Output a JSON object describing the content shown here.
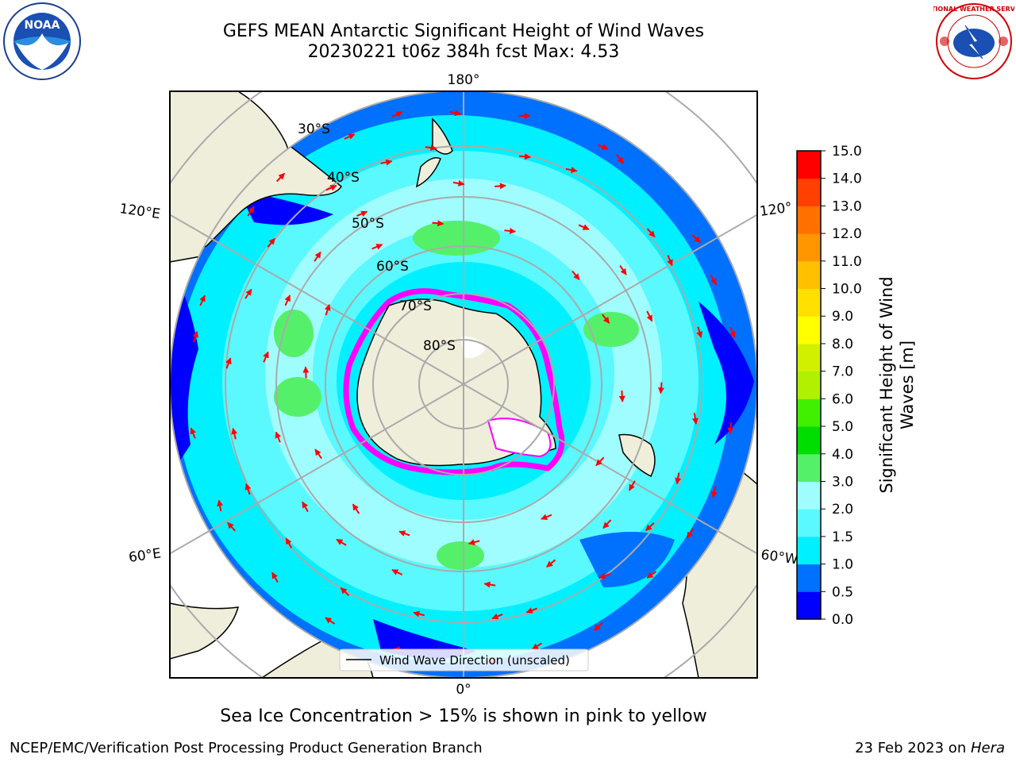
{
  "title": {
    "line1": "GEFS MEAN Antarctic Significant Height of Wind Waves",
    "line2": "20230221 t06z 384h fcst   Max: 4.53"
  },
  "map": {
    "projection": "south-polar-stereographic",
    "longitude_labels": [
      "180°",
      "120°E",
      "120°",
      "60°E",
      "60°W",
      "0°"
    ],
    "latitude_labels": [
      "30°S",
      "40°S",
      "50°S",
      "60°S",
      "70°S",
      "80°S"
    ],
    "legend": "Wind Wave Direction (unscaled)",
    "ocean_colors": {
      "deep_blue": "#0000ff",
      "blue": "#0070ff",
      "cyan": "#00f0ff",
      "light_cyan": "#5af8ff",
      "pale_cyan": "#a0fdff",
      "green": "#55f06a",
      "land": "#efeedb",
      "arrow": "#ff0000",
      "ice": "#ff00ff"
    }
  },
  "colorbar": {
    "title_line1": "Significant Height of Wind",
    "title_line2": "Waves [m]",
    "ticks": [
      "0.0",
      "0.5",
      "1.0",
      "1.5",
      "2.0",
      "3.0",
      "4.0",
      "5.0",
      "6.0",
      "7.0",
      "8.0",
      "9.0",
      "10.0",
      "11.0",
      "12.0",
      "13.0",
      "14.0",
      "15.0"
    ],
    "colors": [
      "#0000ff",
      "#0070ff",
      "#00f0ff",
      "#5af8ff",
      "#a0fdff",
      "#55f06a",
      "#00dd00",
      "#40f000",
      "#b0f000",
      "#d0f000",
      "#ffff00",
      "#ffe000",
      "#ffc000",
      "#ff9600",
      "#ff7000",
      "#ff4000",
      "#ff0000"
    ]
  },
  "logos": {
    "left_text": "NOAA",
    "right_text": "NATIONAL WEATHER SERVICE"
  },
  "footer": {
    "ice_note": "Sea Ice Concentration > 15% is shown in pink to yellow",
    "left": "NCEP/EMC/Verification Post Processing Product Generation Branch",
    "right_date": "23 Feb 2023 on ",
    "right_machine": "Hera"
  }
}
